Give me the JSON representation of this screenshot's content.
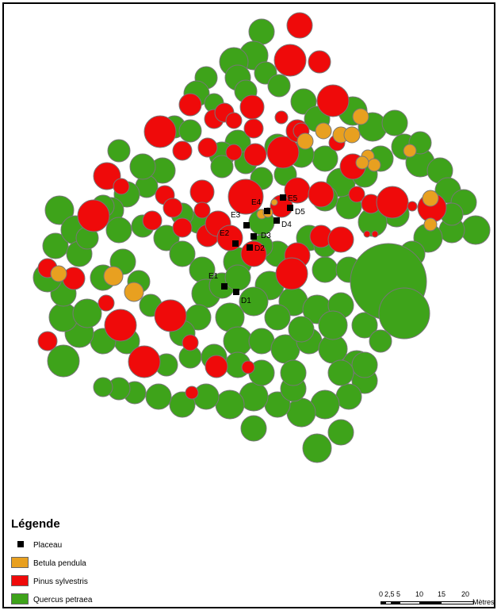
{
  "legend": {
    "title": "Légende",
    "items": [
      {
        "label": "Placeau",
        "type": "marker",
        "color": "#000000"
      },
      {
        "label": "Betula pendula",
        "type": "fill",
        "color": "#e8a020"
      },
      {
        "label": "Pinus sylvestris",
        "type": "fill",
        "color": "#ef0a0a"
      },
      {
        "label": "Quercus petraea",
        "type": "fill",
        "color": "#3ea31a"
      }
    ]
  },
  "plots": [
    "E1",
    "D1",
    "E2",
    "D2",
    "D3",
    "E3",
    "D4",
    "E4",
    "E5",
    "D5"
  ],
  "scale": {
    "ticks": [
      "0",
      "2,5",
      "5",
      "10",
      "15",
      "20"
    ],
    "unit": "Mètres"
  },
  "colors": {
    "quercus": "#3ea31a",
    "pinus": "#ef0a0a",
    "betula": "#e8a020",
    "outline": "#777777",
    "marker": "#000000"
  }
}
